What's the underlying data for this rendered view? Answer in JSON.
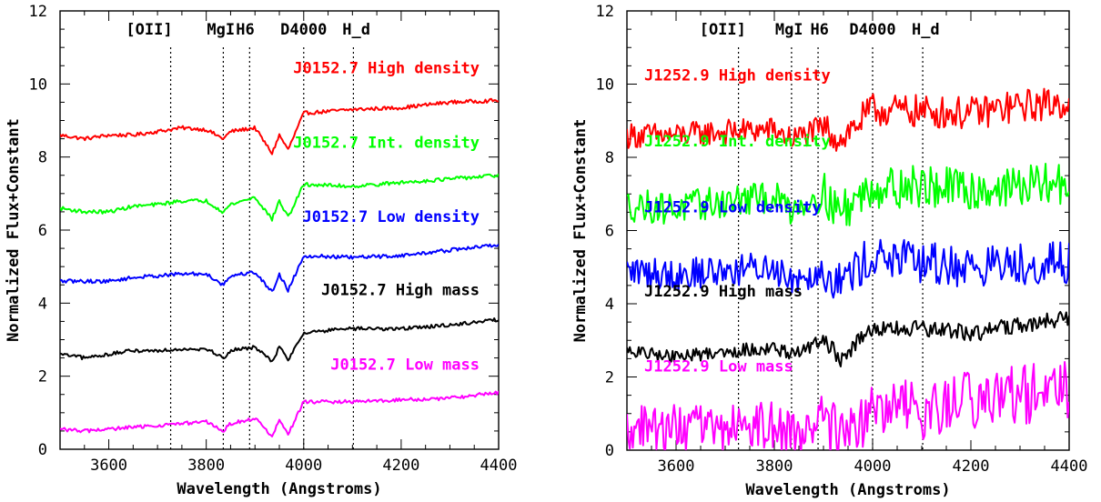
{
  "chart_data": [
    {
      "type": "line",
      "xlabel": "Wavelength (Angstroms)",
      "ylabel": "Normalized Flux+Constant",
      "xlim": [
        3500,
        4400
      ],
      "ylim": [
        0,
        12
      ],
      "xticks": [
        3600,
        3800,
        4000,
        4200,
        4400
      ],
      "yticks": [
        0,
        2,
        4,
        6,
        8,
        10,
        12
      ],
      "grid": false,
      "vlines": [
        {
          "x": 3727,
          "label": "[OII]"
        },
        {
          "x": 3835,
          "label": "MgI"
        },
        {
          "x": 3889,
          "label": "H6"
        },
        {
          "x": 4000,
          "label": "D4000"
        },
        {
          "x": 4102,
          "label": "H_d"
        }
      ],
      "series": [
        {
          "name": "J0152.7 High density",
          "color": "#ff0000",
          "points": [
            [
              3500,
              8.6
            ],
            [
              3550,
              8.5
            ],
            [
              3600,
              8.6
            ],
            [
              3650,
              8.6
            ],
            [
              3700,
              8.7
            ],
            [
              3750,
              8.8
            ],
            [
              3800,
              8.75
            ],
            [
              3835,
              8.5
            ],
            [
              3850,
              8.7
            ],
            [
              3900,
              8.8
            ],
            [
              3935,
              8.1
            ],
            [
              3950,
              8.6
            ],
            [
              3968,
              8.2
            ],
            [
              4000,
              9.2
            ],
            [
              4100,
              9.3
            ],
            [
              4200,
              9.35
            ],
            [
              4300,
              9.5
            ],
            [
              4400,
              9.55
            ]
          ]
        },
        {
          "name": "J0152.7 Int. density",
          "color": "#00ff00",
          "points": [
            [
              3500,
              6.6
            ],
            [
              3550,
              6.5
            ],
            [
              3600,
              6.5
            ],
            [
              3650,
              6.65
            ],
            [
              3700,
              6.7
            ],
            [
              3750,
              6.8
            ],
            [
              3800,
              6.8
            ],
            [
              3835,
              6.5
            ],
            [
              3850,
              6.7
            ],
            [
              3900,
              6.9
            ],
            [
              3935,
              6.3
            ],
            [
              3950,
              6.8
            ],
            [
              3968,
              6.35
            ],
            [
              4000,
              7.25
            ],
            [
              4100,
              7.2
            ],
            [
              4200,
              7.3
            ],
            [
              4300,
              7.4
            ],
            [
              4400,
              7.5
            ]
          ]
        },
        {
          "name": "J0152.7 Low density",
          "color": "#0000ff",
          "points": [
            [
              3500,
              4.6
            ],
            [
              3550,
              4.6
            ],
            [
              3600,
              4.6
            ],
            [
              3650,
              4.7
            ],
            [
              3700,
              4.75
            ],
            [
              3750,
              4.8
            ],
            [
              3800,
              4.8
            ],
            [
              3835,
              4.5
            ],
            [
              3850,
              4.75
            ],
            [
              3900,
              4.85
            ],
            [
              3935,
              4.3
            ],
            [
              3950,
              4.8
            ],
            [
              3968,
              4.35
            ],
            [
              4000,
              5.3
            ],
            [
              4100,
              5.25
            ],
            [
              4200,
              5.3
            ],
            [
              4300,
              5.45
            ],
            [
              4400,
              5.6
            ]
          ]
        },
        {
          "name": "J0152.7 High mass",
          "color": "#000000",
          "points": [
            [
              3500,
              2.6
            ],
            [
              3550,
              2.5
            ],
            [
              3600,
              2.6
            ],
            [
              3650,
              2.7
            ],
            [
              3700,
              2.7
            ],
            [
              3750,
              2.75
            ],
            [
              3800,
              2.75
            ],
            [
              3835,
              2.5
            ],
            [
              3850,
              2.7
            ],
            [
              3900,
              2.8
            ],
            [
              3935,
              2.4
            ],
            [
              3950,
              2.8
            ],
            [
              3968,
              2.45
            ],
            [
              4000,
              3.2
            ],
            [
              4100,
              3.3
            ],
            [
              4200,
              3.3
            ],
            [
              4300,
              3.4
            ],
            [
              4400,
              3.55
            ]
          ]
        },
        {
          "name": "J0152.7 Low mass",
          "color": "#ff00ff",
          "points": [
            [
              3500,
              0.55
            ],
            [
              3550,
              0.5
            ],
            [
              3600,
              0.55
            ],
            [
              3650,
              0.6
            ],
            [
              3700,
              0.65
            ],
            [
              3750,
              0.7
            ],
            [
              3800,
              0.75
            ],
            [
              3835,
              0.5
            ],
            [
              3850,
              0.7
            ],
            [
              3900,
              0.85
            ],
            [
              3935,
              0.35
            ],
            [
              3950,
              0.8
            ],
            [
              3968,
              0.4
            ],
            [
              4000,
              1.3
            ],
            [
              4100,
              1.3
            ],
            [
              4200,
              1.35
            ],
            [
              4300,
              1.4
            ],
            [
              4400,
              1.55
            ]
          ]
        }
      ]
    },
    {
      "type": "line",
      "xlabel": "Wavelength (Angstroms)",
      "ylabel": "Normalized Flux+Constant",
      "xlim": [
        3500,
        4400
      ],
      "ylim": [
        0,
        12
      ],
      "xticks": [
        3600,
        3800,
        4000,
        4200,
        4400
      ],
      "yticks": [
        0,
        2,
        4,
        6,
        8,
        10,
        12
      ],
      "grid": false,
      "vlines": [
        {
          "x": 3727,
          "label": "[OII]"
        },
        {
          "x": 3835,
          "label": "MgI"
        },
        {
          "x": 3889,
          "label": "H6"
        },
        {
          "x": 4000,
          "label": "D4000"
        },
        {
          "x": 4102,
          "label": "H_d"
        }
      ],
      "series": [
        {
          "name": "J1252.9 High density",
          "color": "#ff0000",
          "points": [
            [
              3500,
              8.6
            ],
            [
              3600,
              8.6
            ],
            [
              3700,
              8.7
            ],
            [
              3800,
              8.75
            ],
            [
              3835,
              8.5
            ],
            [
              3900,
              8.8
            ],
            [
              3935,
              8.5
            ],
            [
              4000,
              9.3
            ],
            [
              4100,
              9.25
            ],
            [
              4200,
              9.2
            ],
            [
              4300,
              9.4
            ],
            [
              4400,
              9.5
            ]
          ]
        },
        {
          "name": "J1252.9 Int. density",
          "color": "#00ff00",
          "points": [
            [
              3500,
              6.7
            ],
            [
              3600,
              6.6
            ],
            [
              3700,
              6.8
            ],
            [
              3800,
              6.9
            ],
            [
              3835,
              6.6
            ],
            [
              3900,
              7.0
            ],
            [
              3935,
              6.5
            ],
            [
              4000,
              7.2
            ],
            [
              4100,
              7.2
            ],
            [
              4200,
              7.1
            ],
            [
              4300,
              7.2
            ],
            [
              4400,
              7.3
            ]
          ]
        },
        {
          "name": "J1252.9 Low density",
          "color": "#0000ff",
          "points": [
            [
              3500,
              4.9
            ],
            [
              3600,
              4.8
            ],
            [
              3700,
              4.9
            ],
            [
              3800,
              5.0
            ],
            [
              3835,
              4.7
            ],
            [
              3900,
              4.9
            ],
            [
              3935,
              4.6
            ],
            [
              4000,
              5.3
            ],
            [
              4100,
              5.1
            ],
            [
              4200,
              5.0
            ],
            [
              4300,
              5.1
            ],
            [
              4400,
              5.1
            ]
          ]
        },
        {
          "name": "J1252.9 High mass",
          "color": "#000000",
          "points": [
            [
              3500,
              2.7
            ],
            [
              3600,
              2.55
            ],
            [
              3700,
              2.7
            ],
            [
              3800,
              2.8
            ],
            [
              3835,
              2.6
            ],
            [
              3900,
              3.0
            ],
            [
              3935,
              2.5
            ],
            [
              4000,
              3.3
            ],
            [
              4100,
              3.3
            ],
            [
              4200,
              3.2
            ],
            [
              4300,
              3.4
            ],
            [
              4400,
              3.6
            ]
          ]
        },
        {
          "name": "J1252.9 Low mass",
          "color": "#ff00ff",
          "points": [
            [
              3500,
              0.6
            ],
            [
              3600,
              0.6
            ],
            [
              3700,
              0.6
            ],
            [
              3800,
              0.7
            ],
            [
              3835,
              0.4
            ],
            [
              3900,
              0.9
            ],
            [
              3935,
              0.3
            ],
            [
              4000,
              1.0
            ],
            [
              4100,
              1.1
            ],
            [
              4200,
              1.3
            ],
            [
              4300,
              1.5
            ],
            [
              4400,
              1.6
            ]
          ]
        }
      ]
    }
  ]
}
